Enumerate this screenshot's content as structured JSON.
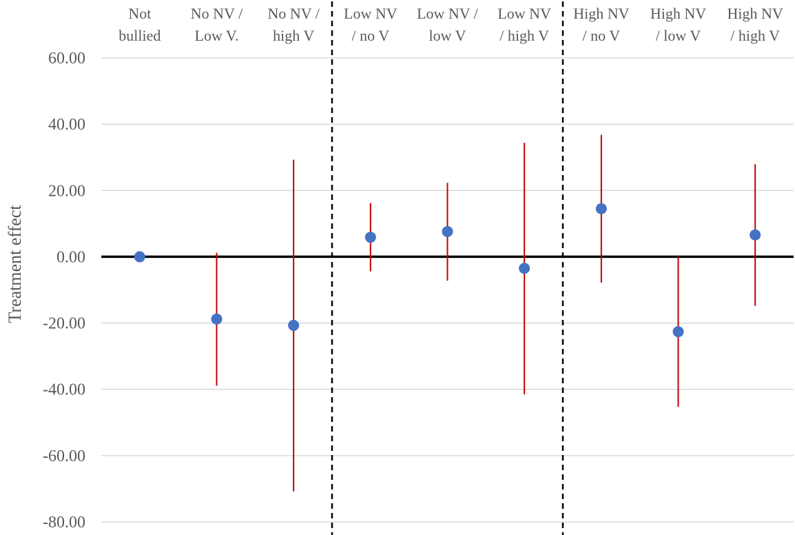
{
  "chart_data": {
    "type": "scatter",
    "ylabel": "Treatment effect",
    "ylim": [
      -80,
      60
    ],
    "yticks": [
      60,
      40,
      20,
      0,
      -20,
      -40,
      -60,
      -80
    ],
    "ytick_labels": [
      "60.00",
      "40.00",
      "20.00",
      "0.00",
      "-20.00",
      "-40.00",
      "-60.00",
      "-80.00"
    ],
    "categories": [
      [
        "Not",
        "bullied"
      ],
      [
        "No NV /",
        "Low V."
      ],
      [
        "No NV /",
        "high V"
      ],
      [
        "Low NV",
        "/ no V"
      ],
      [
        "Low NV /",
        "low V"
      ],
      [
        "Low NV",
        "/ high V"
      ],
      [
        "High NV",
        "/ no V"
      ],
      [
        "High NV",
        "/ low V"
      ],
      [
        "High NV",
        "/ high V"
      ]
    ],
    "values": [
      0.0,
      -18.8,
      -20.7,
      5.9,
      7.6,
      -3.5,
      14.5,
      -22.6,
      6.6
    ],
    "ci_lower": [
      0.0,
      -38.9,
      -70.8,
      -4.4,
      -7.2,
      -41.5,
      -7.8,
      -45.3,
      -14.8
    ],
    "ci_upper": [
      0.0,
      1.2,
      29.3,
      16.2,
      22.3,
      34.4,
      36.8,
      0.0,
      27.9
    ],
    "separators_after_index": [
      2,
      5
    ],
    "grid": true,
    "colors": {
      "point": "#4472C4",
      "error_bar": "#C00000",
      "zero_line": "#000000",
      "grid": "#D9D9D9",
      "separator": "#000000",
      "text": "#595959"
    }
  }
}
